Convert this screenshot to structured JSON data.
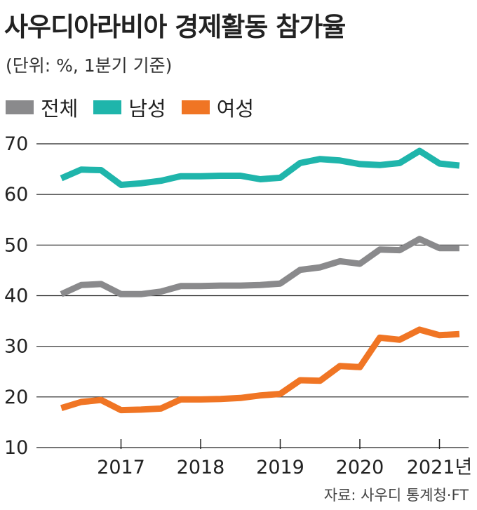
{
  "title": "사우디아라비아 경제활동 참가율",
  "subtitle": "(단위: %, 1분기 기준)",
  "source": "자료: 사우디 통계청·FT",
  "chart_data": {
    "type": "line",
    "title": "사우디아라비아 경제활동 참가율",
    "subtitle": "(단위: %, 1분기 기준)",
    "xlabel": "",
    "ylabel": "",
    "ylim": [
      10,
      70
    ],
    "yticks": [
      10,
      20,
      30,
      40,
      50,
      60,
      70
    ],
    "xticks": [
      {
        "label": "2017",
        "x": 2017.0
      },
      {
        "label": "2018",
        "x": 2018.0
      },
      {
        "label": "2019",
        "x": 2019.0
      },
      {
        "label": "2020",
        "x": 2020.0
      },
      {
        "label": "2021년",
        "x": 2021.0
      }
    ],
    "x": [
      2016.25,
      2016.5,
      2016.75,
      2017.0,
      2017.25,
      2017.5,
      2017.75,
      2018.0,
      2018.25,
      2018.5,
      2018.75,
      2019.0,
      2019.25,
      2019.5,
      2019.75,
      2020.0,
      2020.25,
      2020.5,
      2020.75,
      2021.0,
      2021.25
    ],
    "grid": "horizontal",
    "legend_position": "top-left",
    "series": [
      {
        "name": "전체",
        "color": "#8a8a8c",
        "values": [
          40.3,
          42.1,
          42.3,
          40.3,
          40.3,
          40.8,
          41.9,
          41.9,
          42.0,
          42.0,
          42.1,
          42.4,
          45.1,
          45.6,
          46.8,
          46.3,
          49.1,
          49.0,
          51.2,
          49.4,
          49.4
        ]
      },
      {
        "name": "남성",
        "color": "#1fb5ab",
        "values": [
          63.2,
          64.9,
          64.8,
          61.9,
          62.2,
          62.7,
          63.6,
          63.6,
          63.7,
          63.7,
          63.0,
          63.3,
          66.2,
          67.0,
          66.7,
          66.0,
          65.8,
          66.2,
          68.6,
          66.1,
          65.7
        ]
      },
      {
        "name": "여성",
        "color": "#f07524",
        "values": [
          17.8,
          19.0,
          19.4,
          17.4,
          17.5,
          17.7,
          19.5,
          19.5,
          19.6,
          19.8,
          20.3,
          20.6,
          23.3,
          23.2,
          26.1,
          25.9,
          31.7,
          31.3,
          33.3,
          32.2,
          32.4
        ]
      }
    ]
  }
}
